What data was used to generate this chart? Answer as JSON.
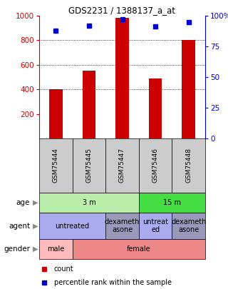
{
  "title": "GDS2231 / 1388137_a_at",
  "samples": [
    "GSM75444",
    "GSM75445",
    "GSM75447",
    "GSM75446",
    "GSM75448"
  ],
  "bar_values": [
    400,
    550,
    980,
    490,
    800
  ],
  "percentile_values": [
    88,
    92,
    97,
    91,
    95
  ],
  "bar_color": "#cc0000",
  "percentile_color": "#0000cc",
  "y_left_ticks": [
    200,
    400,
    600,
    800,
    1000
  ],
  "y_right_ticks": [
    0,
    25,
    50,
    75,
    100
  ],
  "y_right_labels": [
    "0",
    "25",
    "50",
    "75",
    "100%"
  ],
  "grid_values": [
    400,
    600,
    800
  ],
  "age_groups": [
    {
      "label": "3 m",
      "start": 0,
      "end": 3,
      "color": "#bbeeaa"
    },
    {
      "label": "15 m",
      "start": 3,
      "end": 5,
      "color": "#44dd44"
    }
  ],
  "agent_groups": [
    {
      "label": "untreated",
      "start": 0,
      "end": 2,
      "color": "#aaaaee"
    },
    {
      "label": "dexameth\nasone",
      "start": 2,
      "end": 3,
      "color": "#9999bb"
    },
    {
      "label": "untreat\ned",
      "start": 3,
      "end": 4,
      "color": "#aaaaee"
    },
    {
      "label": "dexameth\nasone",
      "start": 4,
      "end": 5,
      "color": "#9999bb"
    }
  ],
  "gender_groups": [
    {
      "label": "male",
      "start": 0,
      "end": 1,
      "color": "#ffbbbb"
    },
    {
      "label": "female",
      "start": 1,
      "end": 5,
      "color": "#ee8888"
    }
  ],
  "row_labels": [
    "age",
    "agent",
    "gender"
  ],
  "legend_items": [
    {
      "label": "count",
      "color": "#cc0000"
    },
    {
      "label": "percentile rank within the sample",
      "color": "#0000cc"
    }
  ]
}
